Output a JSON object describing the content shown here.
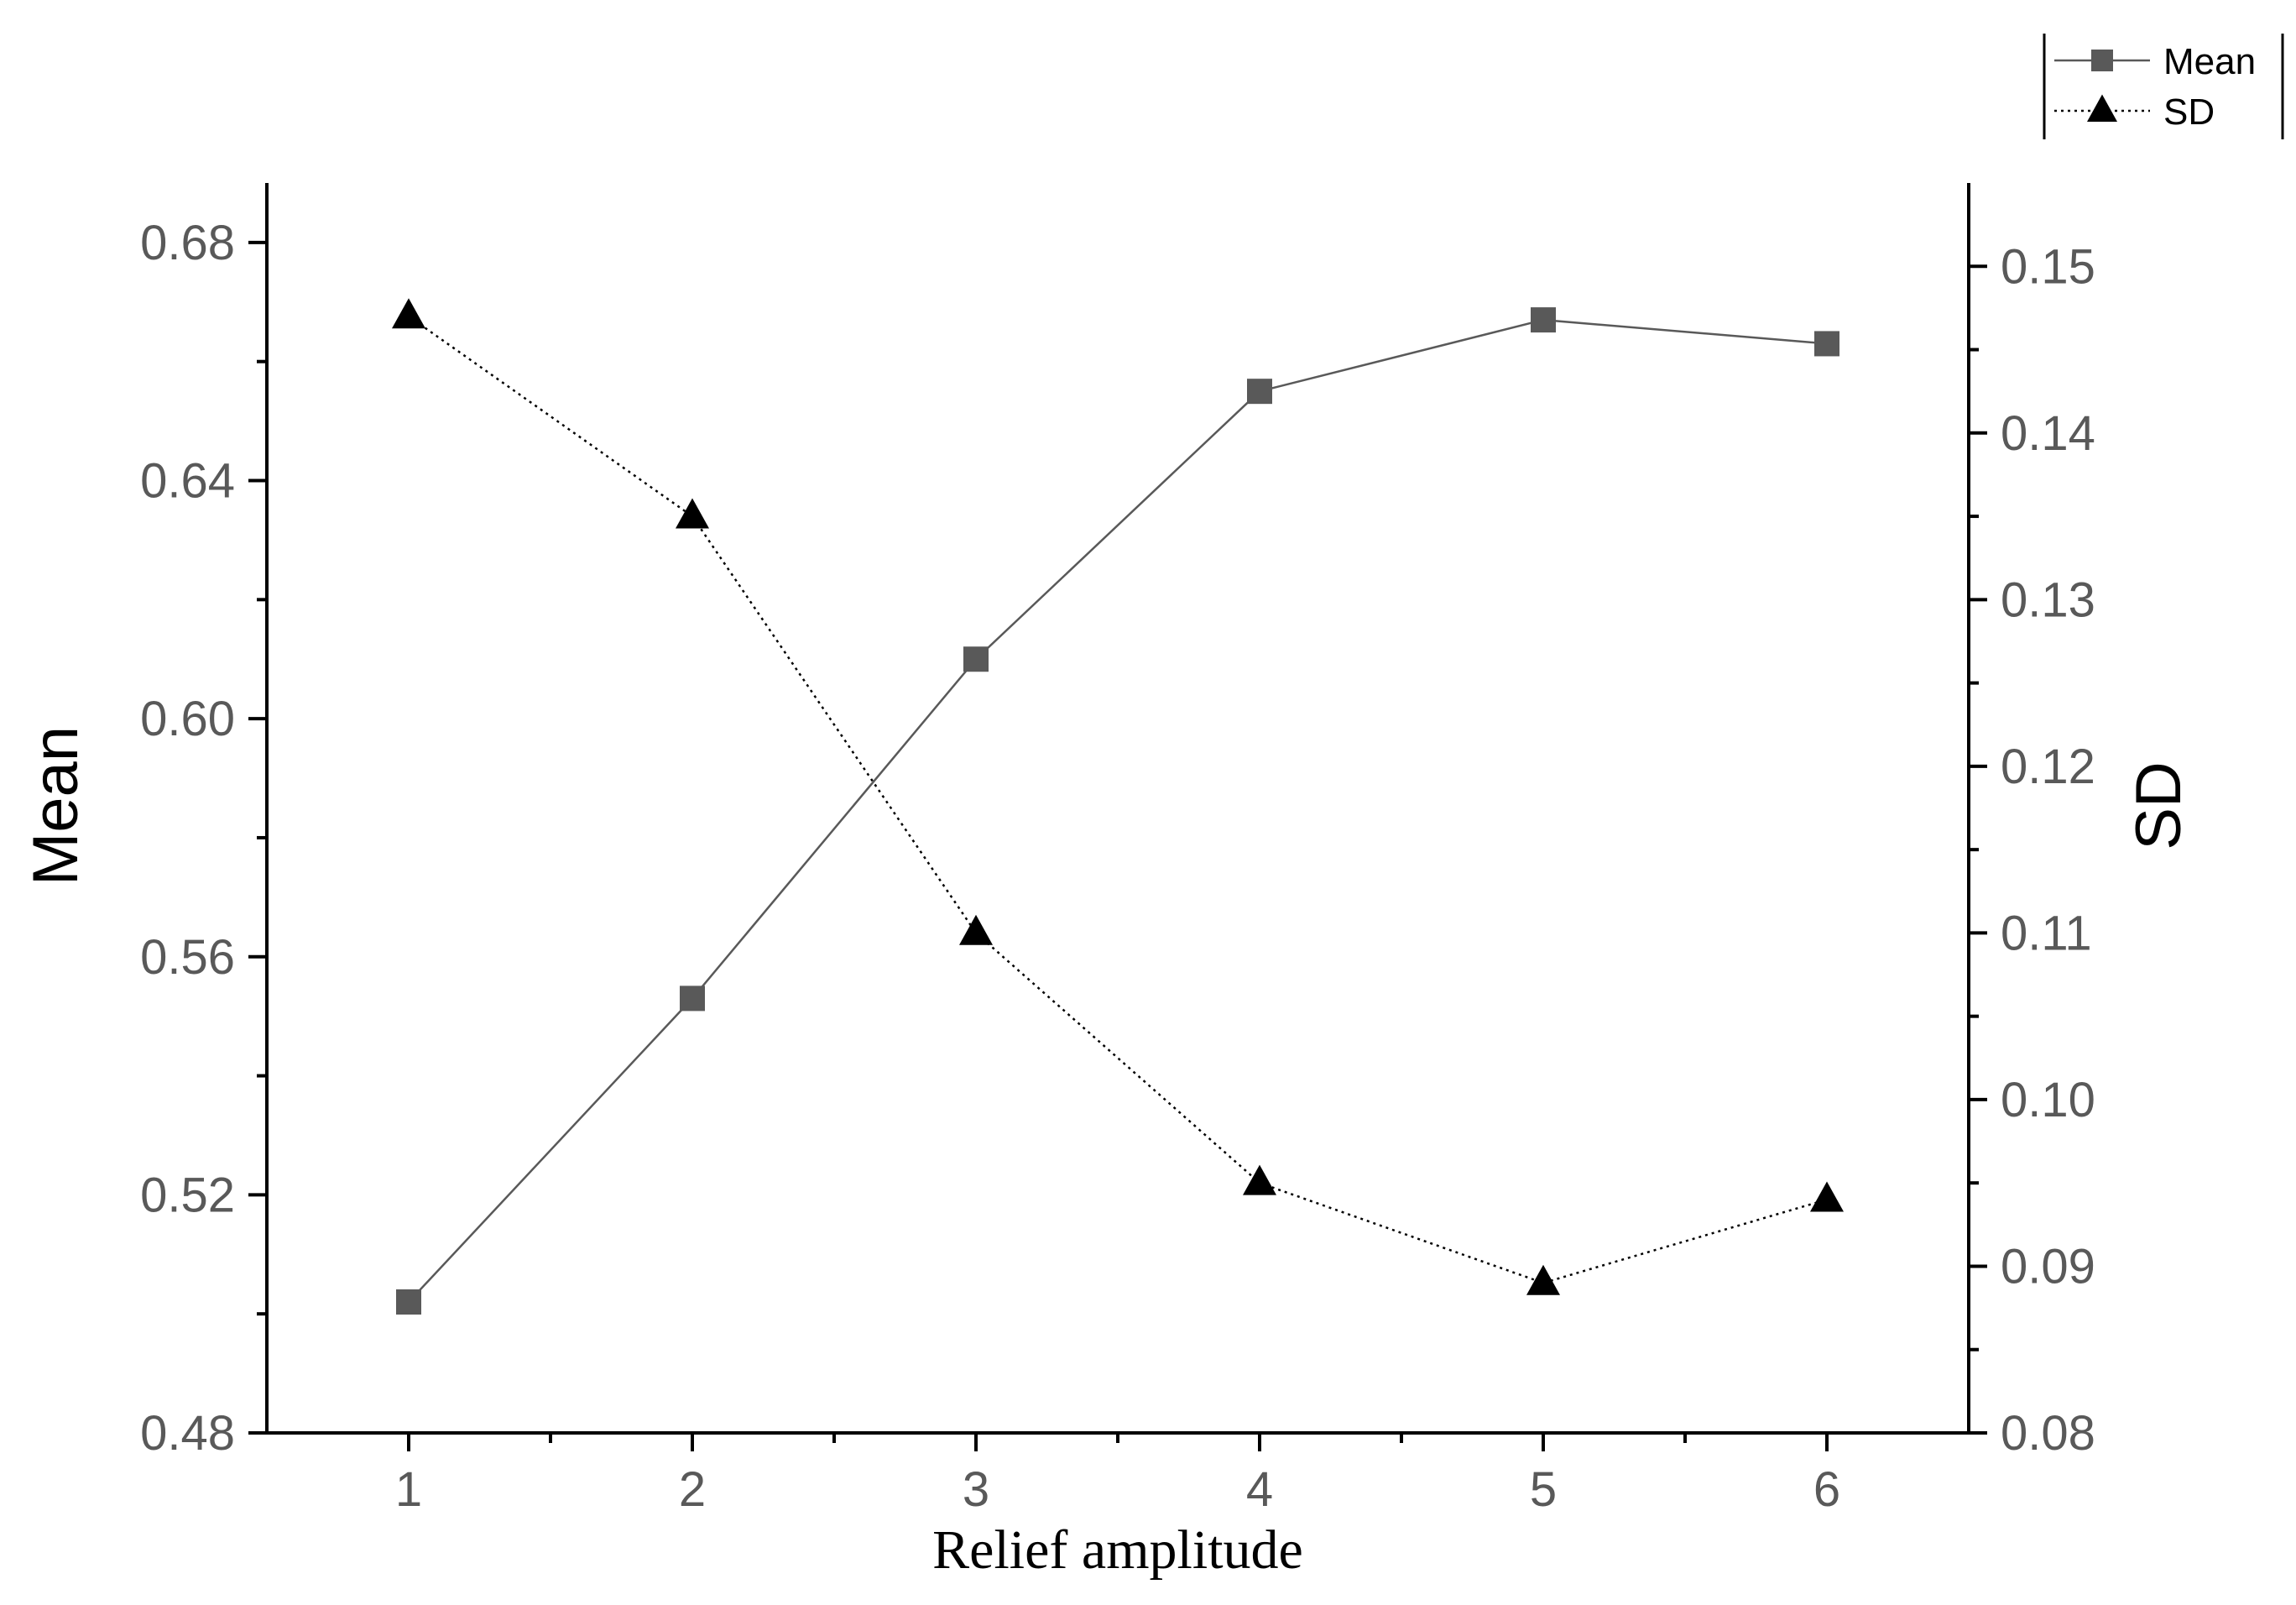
{
  "chart_data": {
    "type": "line",
    "title": "",
    "xlabel": "Relief amplitude",
    "ylabel": "Mean",
    "y2label": "SD",
    "x": [
      1,
      2,
      3,
      4,
      5,
      6
    ],
    "x_tick_labels": [
      "1",
      "2",
      "3",
      "4",
      "5",
      "6"
    ],
    "xlim": [
      0.5,
      6.5
    ],
    "ylim": [
      0.48,
      0.69
    ],
    "y_ticks": [
      0.48,
      0.52,
      0.56,
      0.6,
      0.64,
      0.68
    ],
    "y_tick_labels": [
      "0.48",
      "0.52",
      "0.56",
      "0.60",
      "0.64",
      "0.68"
    ],
    "y2lim": [
      0.08,
      0.155
    ],
    "y2_ticks": [
      0.08,
      0.09,
      0.1,
      0.11,
      0.12,
      0.13,
      0.14,
      0.15
    ],
    "y2_tick_labels": [
      "0.08",
      "0.09",
      "0.10",
      "0.11",
      "0.12",
      "0.13",
      "0.14",
      "0.15"
    ],
    "grid": false,
    "legend_position": "top-right, outside plot",
    "series": [
      {
        "name": "Mean",
        "axis": "left",
        "values": [
          0.502,
          0.553,
          0.61,
          0.655,
          0.667,
          0.663
        ],
        "marker": "square",
        "line_style": "solid",
        "color": "#595959"
      },
      {
        "name": "SD",
        "axis": "right",
        "values": [
          0.147,
          0.135,
          0.11,
          0.095,
          0.089,
          0.094
        ],
        "marker": "triangle",
        "line_style": "dotted",
        "color": "#000000"
      }
    ]
  }
}
